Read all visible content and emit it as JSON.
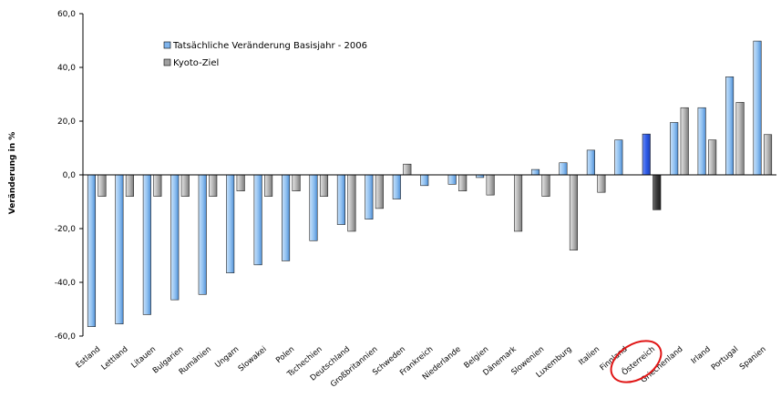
{
  "chart_data": {
    "type": "bar",
    "ylabel": "Veränderung in %",
    "ylim": [
      -60,
      60
    ],
    "yticks": [
      "60,0",
      "40,0",
      "20,0",
      "0,0",
      "-20,0",
      "-40,0",
      "-60,0"
    ],
    "yticks_values": [
      60,
      40,
      20,
      0,
      -20,
      -40,
      -60
    ],
    "grid": false,
    "legend_position": "top-left",
    "categories": [
      "Estland",
      "Lettland",
      "Litauen",
      "Bulgarien",
      "Rumänien",
      "Ungarn",
      "Slowakei",
      "Polen",
      "Tschechien",
      "Deutschland",
      "Großbritannien",
      "Schweden",
      "Frankreich",
      "Niederlande",
      "Belgien",
      "Dänemark",
      "Slowenien",
      "Luxemburg",
      "Italien",
      "Finnland",
      "Österreich",
      "Griechenland",
      "Irland",
      "Portugal",
      "Spanien"
    ],
    "highlight_category": "Österreich",
    "series": [
      {
        "name": "Tatsächliche Veränderung Basisjahr - 2006",
        "color": "#7fb4ec",
        "highlight_color": "#2a56e0",
        "values": [
          -56.5,
          -55.5,
          -52,
          -46.5,
          -44.5,
          -36.5,
          -33.5,
          -32,
          -24.5,
          -18.5,
          -16.5,
          -9,
          -4,
          -3.5,
          -1,
          0,
          2,
          4.5,
          9.2,
          13,
          15.2,
          19.5,
          25,
          36.5,
          49.8
        ]
      },
      {
        "name": "Kyoto-Ziel",
        "color": "#a0a0a0",
        "highlight_color": "#2e2e2e",
        "values": [
          -8,
          -8,
          -8,
          -8,
          -8,
          -6,
          -8,
          -6,
          -8,
          -21,
          -12.5,
          4,
          null,
          -6,
          -7.5,
          -21,
          -8,
          -28,
          -6.5,
          0,
          -13,
          25,
          13,
          27,
          15
        ]
      }
    ]
  }
}
